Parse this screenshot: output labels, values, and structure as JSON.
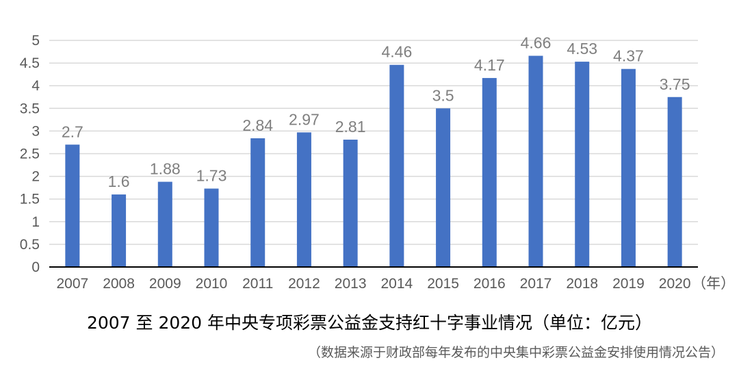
{
  "chart_data": {
    "type": "bar",
    "title": "2007 至 2020 年中央专项彩票公益金支持红十字事业情况（单位：亿元）",
    "subtitle": "（数据来源于财政部每年发布的中央集中彩票公益金安排使用情况公告）",
    "xlabel": "（年）",
    "ylabel": "",
    "unit": "亿元",
    "categories": [
      "2007",
      "2008",
      "2009",
      "2010",
      "2011",
      "2012",
      "2013",
      "2014",
      "2015",
      "2016",
      "2017",
      "2018",
      "2019",
      "2020"
    ],
    "values": [
      2.7,
      1.6,
      1.88,
      1.73,
      2.84,
      2.97,
      2.81,
      4.46,
      3.5,
      4.17,
      4.66,
      4.53,
      4.37,
      3.75
    ],
    "data_labels": [
      "2.7",
      "1.6",
      "1.88",
      "1.73",
      "2.84",
      "2.97",
      "2.81",
      "4.46",
      "3.5",
      "4.17",
      "4.66",
      "4.53",
      "4.37",
      "3.75"
    ],
    "yticks": [
      "0",
      "0.5",
      "1",
      "1.5",
      "2",
      "2.5",
      "3",
      "3.5",
      "4",
      "4.5",
      "5"
    ],
    "ylim": [
      0,
      5
    ],
    "grid": true,
    "legend": null,
    "bar_color": "#4472c4"
  },
  "title": "2007 至 2020 年中央专项彩票公益金支持红十字事业情况（单位：亿元）",
  "source_note": "（数据来源于财政部每年发布的中央集中彩票公益金安排使用情况公告）"
}
